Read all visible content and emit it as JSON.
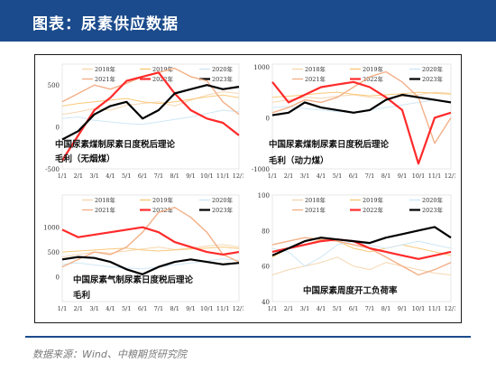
{
  "header": {
    "title": "图表：尿素供应数据"
  },
  "footer": {
    "source": "数据来源：Wind、中粮期货研究院"
  },
  "colors": {
    "c2018": "#f6d7b0",
    "c2019": "#f9c979",
    "c2020": "#cfe7f6",
    "c2021": "#f3b088",
    "c2022": "#ff2a2a",
    "c2023": "#000000"
  },
  "chart_data": [
    {
      "type": "line",
      "title": "中国尿素煤制尿素日度税后理论毛利（无烟煤）",
      "title_lines": [
        "中国尿素煤制尿素日度税后理论",
        "毛利（无烟煤）"
      ],
      "x_ticks": [
        "1/1",
        "2/1",
        "3/1",
        "4/1",
        "5/1",
        "6/1",
        "7/1",
        "8/1",
        "9/1",
        "10/1",
        "11/1",
        "12/1"
      ],
      "ylim": [
        -500,
        750
      ],
      "y_ticks": [
        "500",
        "0",
        "-500"
      ],
      "y_tick_values": [
        500,
        0,
        -500
      ],
      "legend": [
        "2018年",
        "2019年",
        "2020年",
        "2021年",
        "2022年",
        "2023年"
      ],
      "series": [
        {
          "name": "2018年",
          "x": [
            0,
            1,
            2,
            3,
            4,
            5,
            6,
            7,
            8,
            9,
            10,
            11
          ],
          "values": [
            150,
            180,
            220,
            200,
            260,
            280,
            300,
            250,
            320,
            380,
            420,
            400
          ]
        },
        {
          "name": "2019年",
          "x": [
            0,
            1,
            2,
            3,
            4,
            5,
            6,
            7,
            8,
            9,
            10,
            11
          ],
          "values": [
            250,
            280,
            300,
            320,
            340,
            300,
            280,
            300,
            330,
            360,
            380,
            350
          ]
        },
        {
          "name": "2020年",
          "x": [
            0,
            1,
            2,
            3,
            4,
            5,
            6,
            7,
            8,
            9,
            10,
            11
          ],
          "values": [
            100,
            120,
            80,
            60,
            40,
            30,
            60,
            90,
            120,
            160,
            200,
            180
          ]
        },
        {
          "name": "2021年",
          "x": [
            0,
            1,
            2,
            3,
            4,
            5,
            6,
            7,
            8,
            9,
            10,
            11
          ],
          "values": [
            300,
            400,
            500,
            450,
            520,
            600,
            650,
            700,
            600,
            550,
            300,
            150
          ]
        },
        {
          "name": "2022年",
          "x": [
            0,
            1,
            2,
            3,
            4,
            5,
            6,
            7,
            8,
            9,
            10,
            11
          ],
          "values": [
            -400,
            -100,
            200,
            350,
            550,
            600,
            650,
            400,
            200,
            100,
            50,
            -100
          ]
        },
        {
          "name": "2023年",
          "x": [
            0,
            1,
            2,
            3,
            4,
            5,
            6,
            7,
            8,
            9,
            10,
            11
          ],
          "values": [
            -150,
            -50,
            150,
            250,
            300,
            100,
            200,
            400,
            450,
            500,
            450,
            480
          ]
        }
      ]
    },
    {
      "type": "line",
      "title": "中国尿素煤制尿素日度税后理论毛利（动力煤）",
      "title_lines": [
        "中国尿素煤制尿素日度税后理论",
        "毛利（动力煤）"
      ],
      "x_ticks": [
        "1/1",
        "2/1",
        "3/1",
        "4/1",
        "5/1",
        "6/1",
        "7/1",
        "8/1",
        "9/1",
        "10/1",
        "11/1",
        "12/1"
      ],
      "ylim": [
        -1000,
        1050
      ],
      "y_ticks": [
        "1000",
        "0",
        "-1000"
      ],
      "y_tick_values": [
        1000,
        0,
        -1000
      ],
      "legend": [
        "2018年",
        "2019年",
        "2020年",
        "2021年",
        "2022年",
        "2023年"
      ],
      "series": [
        {
          "name": "2018年",
          "x": [
            0,
            1,
            2,
            3,
            4,
            5,
            6,
            7,
            8,
            9,
            10,
            11
          ],
          "values": [
            300,
            350,
            400,
            380,
            420,
            450,
            400,
            380,
            420,
            450,
            500,
            480
          ]
        },
        {
          "name": "2019年",
          "x": [
            0,
            1,
            2,
            3,
            4,
            5,
            6,
            7,
            8,
            9,
            10,
            11
          ],
          "values": [
            400,
            420,
            450,
            480,
            500,
            460,
            430,
            450,
            470,
            500,
            480,
            460
          ]
        },
        {
          "name": "2020年",
          "x": [
            0,
            1,
            2,
            3,
            4,
            5,
            6,
            7,
            8,
            9,
            10,
            11
          ],
          "values": [
            200,
            220,
            180,
            150,
            120,
            100,
            150,
            200,
            250,
            300,
            350,
            320
          ]
        },
        {
          "name": "2021年",
          "x": [
            0,
            1,
            2,
            3,
            4,
            5,
            6,
            7,
            8,
            9,
            10,
            11
          ],
          "values": [
            100,
            200,
            350,
            300,
            400,
            600,
            800,
            900,
            700,
            400,
            -500,
            0
          ]
        },
        {
          "name": "2022年",
          "x": [
            0,
            1,
            2,
            3,
            4,
            5,
            6,
            7,
            8,
            9,
            10,
            11
          ],
          "values": [
            700,
            300,
            450,
            600,
            650,
            700,
            600,
            400,
            150,
            -900,
            0,
            100
          ]
        },
        {
          "name": "2023年",
          "x": [
            0,
            1,
            2,
            3,
            4,
            5,
            6,
            7,
            8,
            9,
            10,
            11
          ],
          "values": [
            50,
            100,
            300,
            200,
            150,
            100,
            150,
            350,
            450,
            400,
            350,
            300
          ]
        }
      ]
    },
    {
      "type": "line",
      "title": "中国尿素气制尿素日度税后理论毛利",
      "title_lines": [
        "中国尿素气制尿素日度税后理论",
        "毛利"
      ],
      "x_ticks": [
        "1/1",
        "2/1",
        "3/1",
        "4/1",
        "5/1",
        "6/1",
        "7/1",
        "8/1",
        "9/1",
        "10/1",
        "11/1",
        "12/1"
      ],
      "ylim": [
        -500,
        1650
      ],
      "y_ticks": [
        "1000",
        "500",
        "0"
      ],
      "y_tick_values": [
        1000,
        500,
        0
      ],
      "legend": [
        "2018年",
        "2019年",
        "2020年",
        "2021年",
        "2022年",
        "2023年"
      ],
      "series": [
        {
          "name": "2018年",
          "x": [
            0,
            1,
            2,
            3,
            4,
            5,
            6,
            7,
            8,
            9,
            10,
            11
          ],
          "values": [
            400,
            450,
            500,
            480,
            520,
            560,
            600,
            550,
            580,
            620,
            650,
            600
          ]
        },
        {
          "name": "2019年",
          "x": [
            0,
            1,
            2,
            3,
            4,
            5,
            6,
            7,
            8,
            9,
            10,
            11
          ],
          "values": [
            500,
            520,
            540,
            560,
            580,
            540,
            520,
            540,
            560,
            580,
            600,
            570
          ]
        },
        {
          "name": "2020年",
          "x": [
            0,
            1,
            2,
            3,
            4,
            5,
            6,
            7,
            8,
            9,
            10,
            11
          ],
          "values": [
            250,
            280,
            240,
            200,
            180,
            160,
            200,
            240,
            280,
            320,
            360,
            330
          ]
        },
        {
          "name": "2021年",
          "x": [
            0,
            1,
            2,
            3,
            4,
            5,
            6,
            7,
            8,
            9,
            10,
            11
          ],
          "values": [
            200,
            350,
            500,
            450,
            600,
            900,
            1300,
            1400,
            1200,
            900,
            450,
            300
          ]
        },
        {
          "name": "2022年",
          "x": [
            0,
            1,
            2,
            3,
            4,
            5,
            6,
            7,
            8,
            9,
            10,
            11
          ],
          "values": [
            950,
            800,
            850,
            900,
            950,
            1000,
            900,
            700,
            600,
            500,
            450,
            500
          ]
        },
        {
          "name": "2023年",
          "x": [
            0,
            1,
            2,
            3,
            4,
            5,
            6,
            7,
            8,
            9,
            10,
            11
          ],
          "values": [
            350,
            400,
            380,
            300,
            150,
            50,
            200,
            300,
            350,
            300,
            250,
            280
          ]
        }
      ]
    },
    {
      "type": "line",
      "title": "中国尿素周度开工负荷率",
      "title_lines": [
        "中国尿素周度开工负荷率"
      ],
      "x_ticks": [
        "1/1",
        "2/1",
        "3/1",
        "4/1",
        "5/1",
        "6/1",
        "7/1",
        "8/1",
        "9/1",
        "10/1",
        "11/1",
        "12/1"
      ],
      "ylim": [
        40,
        100
      ],
      "y_ticks": [
        "100",
        "80",
        "60",
        "40"
      ],
      "y_tick_values": [
        100,
        80,
        60,
        40
      ],
      "legend": [
        "2018年",
        "2019年",
        "2020年",
        "2021年",
        "2022年",
        "2023年"
      ],
      "series": [
        {
          "name": "2018年",
          "x": [
            0,
            1,
            2,
            3,
            4,
            5,
            6,
            7,
            8,
            9,
            10,
            11
          ],
          "values": [
            55,
            58,
            60,
            62,
            65,
            60,
            58,
            62,
            60,
            58,
            56,
            55
          ]
        },
        {
          "name": "2019年",
          "x": [
            0,
            1,
            2,
            3,
            4,
            5,
            6,
            7,
            8,
            9,
            10,
            11
          ],
          "values": [
            65,
            70,
            72,
            75,
            74,
            70,
            68,
            70,
            72,
            70,
            68,
            66
          ]
        },
        {
          "name": "2020年",
          "x": [
            0,
            1,
            2,
            3,
            4,
            5,
            6,
            7,
            8,
            9,
            10,
            11
          ],
          "values": [
            70,
            68,
            60,
            65,
            72,
            74,
            72,
            70,
            72,
            74,
            72,
            70
          ]
        },
        {
          "name": "2021年",
          "x": [
            0,
            1,
            2,
            3,
            4,
            5,
            6,
            7,
            8,
            9,
            10,
            11
          ],
          "values": [
            72,
            74,
            76,
            75,
            74,
            72,
            70,
            65,
            60,
            55,
            58,
            62
          ]
        },
        {
          "name": "2022年",
          "x": [
            0,
            1,
            2,
            3,
            4,
            5,
            6,
            7,
            8,
            9,
            10,
            11
          ],
          "values": [
            68,
            70,
            72,
            74,
            75,
            74,
            70,
            68,
            66,
            64,
            66,
            68
          ]
        },
        {
          "name": "2023年",
          "x": [
            0,
            1,
            2,
            3,
            4,
            5,
            6,
            7,
            8,
            9,
            10,
            11
          ],
          "values": [
            66,
            70,
            74,
            76,
            75,
            74,
            73,
            76,
            78,
            80,
            82,
            76
          ]
        }
      ]
    }
  ]
}
